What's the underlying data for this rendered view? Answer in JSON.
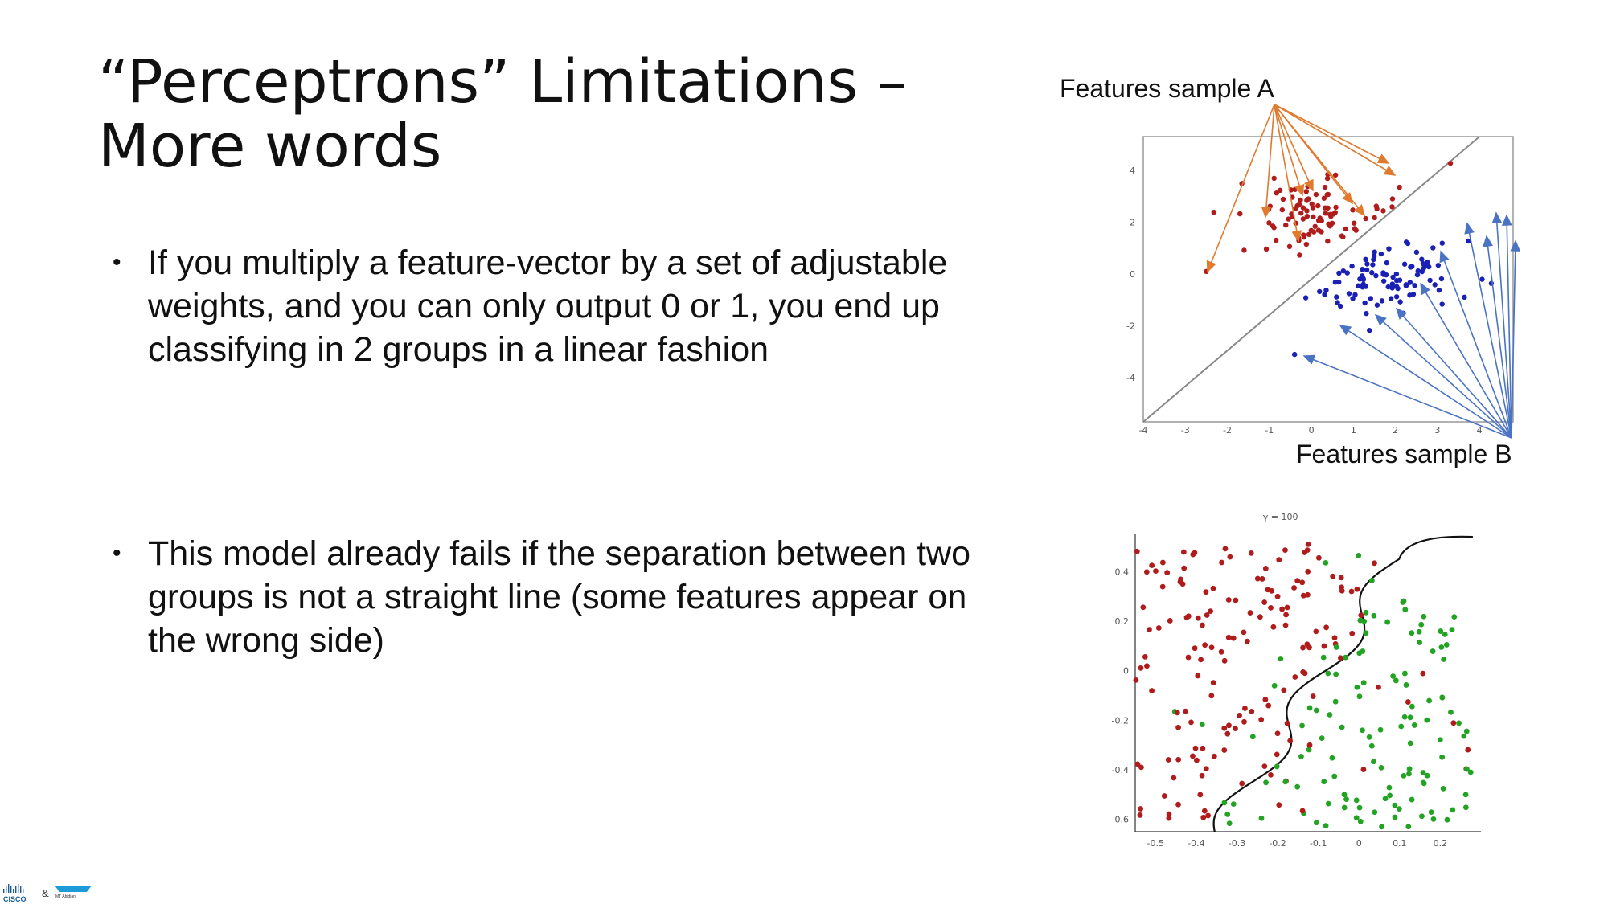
{
  "slide": {
    "title_line1": "“Perceptrons” Limitations –",
    "title_line2": "More words",
    "bullets": [
      "If you multiply a feature-vector by a set of adjustable weights, and you can only output 0 or 1, you end up classifying in 2 groups in a linear fashion",
      "This model already fails if the separation between two groups is not a straight line (some features appear on the wrong side)"
    ],
    "bullet_glyph": "•"
  },
  "annotations": {
    "sample_a": "Features sample A",
    "sample_b": "Features sample B"
  },
  "footer": {
    "logo_text": "CISCO",
    "ampersand": "&",
    "partner_text": "MT Abidjan"
  },
  "colors": {
    "class_red": "#b01c1c",
    "class_blue": "#1a1fb5",
    "class_green": "#23a323",
    "arrow_a": "#e07a2e",
    "arrow_b": "#4a73c4"
  },
  "chart_data": [
    {
      "type": "scatter",
      "title": "",
      "xlim": [
        -4,
        4.8
      ],
      "ylim": [
        -5.7,
        5.3
      ],
      "x_ticks": [
        "-4",
        "-3",
        "-2",
        "-1",
        "0",
        "1",
        "2",
        "3",
        "4"
      ],
      "y_ticks": [
        "4",
        "2",
        "0",
        "-2",
        "-4"
      ],
      "decision_boundary": "linear (y = x)",
      "series": [
        {
          "color": "red",
          "cluster_center": [
            0,
            2.2
          ],
          "spread": 0.9
        },
        {
          "color": "blue",
          "cluster_center": [
            2.0,
            -0.2
          ],
          "spread": 0.9
        }
      ]
    },
    {
      "type": "scatter",
      "title": "γ = 100",
      "xlim": [
        -0.55,
        0.3
      ],
      "ylim": [
        -0.65,
        0.55
      ],
      "x_ticks": [
        "-0.5",
        "-0.4",
        "-0.3",
        "-0.2",
        "-0.1",
        "0",
        "0.1",
        "0.2"
      ],
      "y_ticks": [
        "0.4",
        "0.2",
        "0",
        "-0.2",
        "-0.4",
        "-0.6"
      ],
      "decision_boundary": "non-linear curve",
      "series": [
        {
          "color": "red"
        },
        {
          "color": "green"
        }
      ]
    }
  ]
}
